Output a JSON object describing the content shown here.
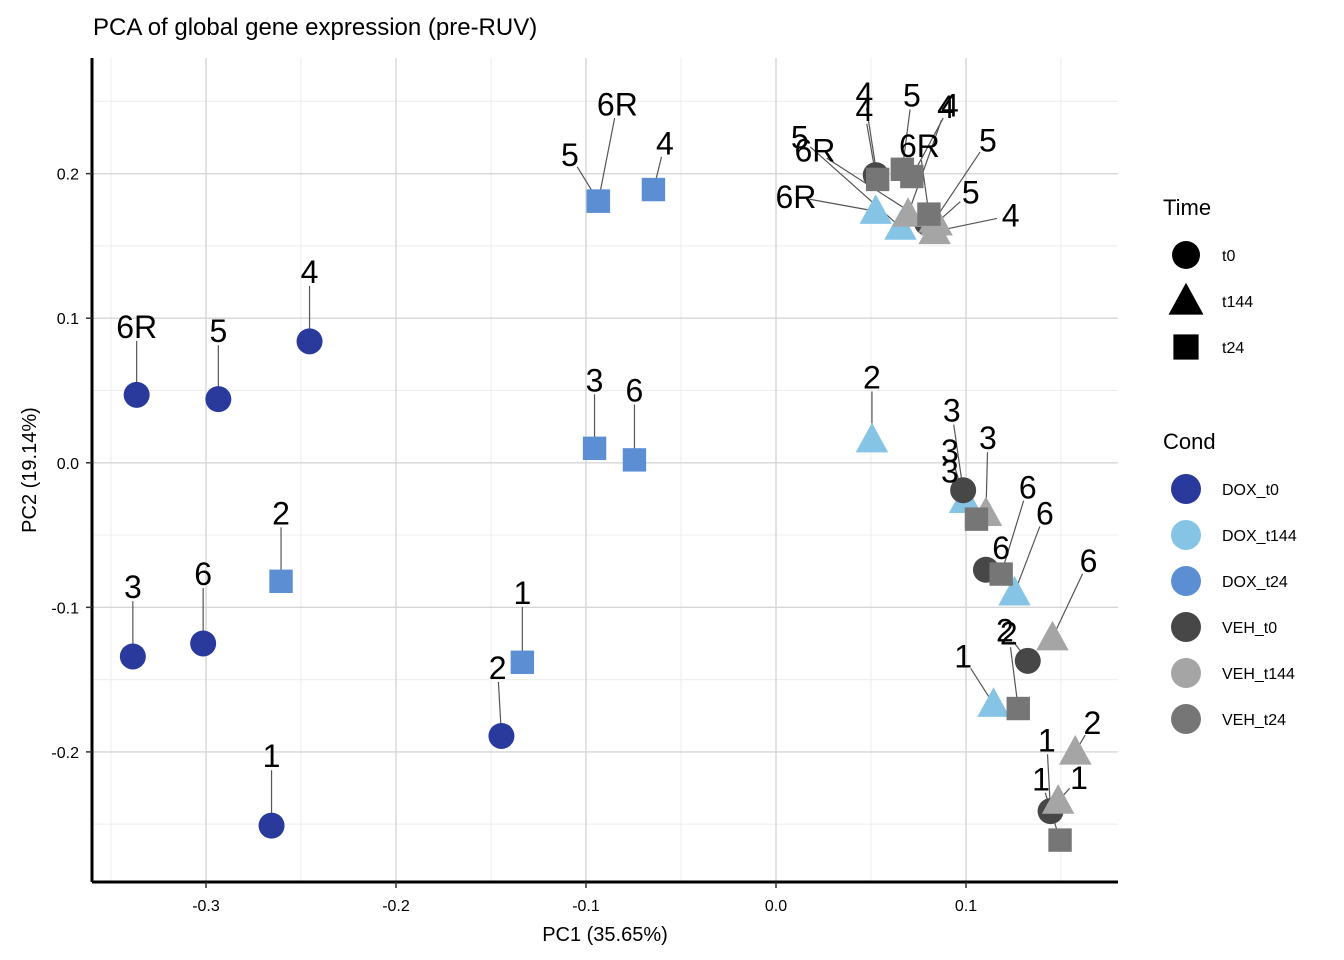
{
  "chart_data": {
    "type": "scatter",
    "title": "PCA of global gene expression (pre-RUV)",
    "xlabel": "PC1 (35.65%)",
    "ylabel": "PC2 (19.14%)",
    "xlim": [
      -0.36,
      0.18
    ],
    "ylim": [
      -0.29,
      0.28
    ],
    "x_ticks": [
      -0.3,
      -0.2,
      -0.1,
      0.0,
      0.1
    ],
    "x_tick_labels": [
      "-0.3",
      "-0.2",
      "-0.1",
      "0.0",
      "0.1"
    ],
    "y_ticks": [
      -0.2,
      -0.1,
      0.0,
      0.1,
      0.2
    ],
    "y_tick_labels": [
      "-0.2",
      "-0.1",
      "0.0",
      "0.1",
      "0.2"
    ],
    "grid": true,
    "legend_position": "right",
    "time_legend": {
      "title": "Time",
      "entries": [
        {
          "label": "t0",
          "shape": "circle"
        },
        {
          "label": "t144",
          "shape": "triangle"
        },
        {
          "label": "t24",
          "shape": "square"
        }
      ]
    },
    "cond_legend": {
      "title": "Cond",
      "entries": [
        {
          "label": "DOX_t0",
          "color": "#2a3a9c"
        },
        {
          "label": "DOX_t144",
          "color": "#86c4e6"
        },
        {
          "label": "DOX_t24",
          "color": "#5b8ed3"
        },
        {
          "label": "VEH_t0",
          "color": "#474747"
        },
        {
          "label": "VEH_t144",
          "color": "#a5a5a5"
        },
        {
          "label": "VEH_t24",
          "color": "#767676"
        }
      ]
    },
    "points": [
      {
        "label": "6R",
        "cond": "DOX_t0",
        "x": -0.3365,
        "y": 0.047,
        "lx": -0.3365,
        "ly": 0.094
      },
      {
        "label": "5",
        "cond": "DOX_t0",
        "x": -0.2935,
        "y": 0.044,
        "lx": -0.2935,
        "ly": 0.091
      },
      {
        "label": "4",
        "cond": "DOX_t0",
        "x": -0.2455,
        "y": 0.084,
        "lx": -0.2455,
        "ly": 0.132
      },
      {
        "label": "3",
        "cond": "DOX_t0",
        "x": -0.3385,
        "y": -0.134,
        "lx": -0.3385,
        "ly": -0.086
      },
      {
        "label": "6",
        "cond": "DOX_t0",
        "x": -0.3015,
        "y": -0.125,
        "lx": -0.3015,
        "ly": -0.077
      },
      {
        "label": "1",
        "cond": "DOX_t0",
        "x": -0.2655,
        "y": -0.251,
        "lx": -0.2655,
        "ly": -0.203
      },
      {
        "label": "2",
        "cond": "DOX_t0",
        "x": -0.1445,
        "y": -0.189,
        "lx": -0.1465,
        "ly": -0.142
      },
      {
        "label": "2",
        "cond": "DOX_t24",
        "x": -0.2605,
        "y": -0.082,
        "lx": -0.2605,
        "ly": -0.035
      },
      {
        "label": "1",
        "cond": "DOX_t24",
        "x": -0.1335,
        "y": -0.138,
        "lx": -0.1335,
        "ly": -0.09
      },
      {
        "label": "3",
        "cond": "DOX_t24",
        "x": -0.0955,
        "y": 0.01,
        "lx": -0.0955,
        "ly": 0.057
      },
      {
        "label": "6",
        "cond": "DOX_t24",
        "x": -0.0745,
        "y": 0.002,
        "lx": -0.0745,
        "ly": 0.05
      },
      {
        "label": "5",
        "cond": "DOX_t24",
        "x": -0.0935,
        "y": 0.181,
        "lx": -0.1085,
        "ly": 0.213
      },
      {
        "label": "6R",
        "cond": "DOX_t24",
        "x": -0.0935,
        "y": 0.181,
        "lx": -0.0835,
        "ly": 0.248
      },
      {
        "label": "4",
        "cond": "DOX_t24",
        "x": -0.0645,
        "y": 0.189,
        "lx": -0.0585,
        "ly": 0.221
      },
      {
        "label": "2",
        "cond": "DOX_t144",
        "x": 0.0505,
        "y": 0.016,
        "lx": 0.0505,
        "ly": 0.059
      },
      {
        "label": "3",
        "cond": "DOX_t144",
        "x": 0.0995,
        "y": -0.026,
        "lx": 0.0915,
        "ly": 0.008
      },
      {
        "label": "6",
        "cond": "DOX_t144",
        "x": 0.1255,
        "y": -0.09,
        "lx": 0.1415,
        "ly": -0.035
      },
      {
        "label": "1",
        "cond": "DOX_t144",
        "x": 0.1145,
        "y": -0.167,
        "lx": 0.0985,
        "ly": -0.134
      },
      {
        "label": "6R",
        "cond": "DOX_t144",
        "x": 0.0525,
        "y": 0.174,
        "lx": 0.0105,
        "ly": 0.184
      },
      {
        "label": "5",
        "cond": "DOX_t144",
        "x": 0.0655,
        "y": 0.163,
        "lx": 0.0125,
        "ly": 0.225
      },
      {
        "label": "3",
        "cond": "VEH_t0",
        "x": 0.0985,
        "y": -0.019,
        "lx": 0.0925,
        "ly": 0.036
      },
      {
        "label": "6",
        "cond": "VEH_t0",
        "x": 0.1105,
        "y": -0.074,
        "lx": 0.1185,
        "ly": -0.059
      },
      {
        "label": "2",
        "cond": "VEH_t0",
        "x": 0.1325,
        "y": -0.137,
        "lx": 0.1205,
        "ly": -0.116
      },
      {
        "label": "1",
        "cond": "VEH_t0",
        "x": 0.1445,
        "y": -0.241,
        "lx": 0.1425,
        "ly": -0.192
      },
      {
        "label": "4",
        "cond": "VEH_t0",
        "x": 0.0525,
        "y": 0.199,
        "lx": 0.0465,
        "ly": 0.244
      },
      {
        "label": "6R",
        "cond": "VEH_t0",
        "x": 0.0795,
        "y": 0.166,
        "lx": 0.0205,
        "ly": 0.216
      },
      {
        "label": "3",
        "cond": "VEH_t144",
        "x": 0.1105,
        "y": -0.035,
        "lx": 0.1115,
        "ly": 0.017
      },
      {
        "label": "6",
        "cond": "VEH_t144",
        "x": 0.1455,
        "y": -0.121,
        "lx": 0.1645,
        "ly": -0.068
      },
      {
        "label": "2",
        "cond": "VEH_t144",
        "x": 0.1575,
        "y": -0.2,
        "lx": 0.1665,
        "ly": -0.18
      },
      {
        "label": "1",
        "cond": "VEH_t144",
        "x": 0.1485,
        "y": -0.234,
        "lx": 0.1595,
        "ly": -0.218
      },
      {
        "label": "4",
        "cond": "VEH_t144",
        "x": 0.0695,
        "y": 0.172,
        "lx": 0.0895,
        "ly": 0.246
      },
      {
        "label": "5",
        "cond": "VEH_t144",
        "x": 0.0835,
        "y": 0.168,
        "lx": 0.1115,
        "ly": 0.223
      },
      {
        "label": "4",
        "cond": "VEH_t144",
        "x": 0.0835,
        "y": 0.16,
        "lx": 0.1235,
        "ly": 0.171
      },
      {
        "label": "5",
        "cond": "VEH_t144",
        "x": 0.0845,
        "y": 0.166,
        "lx": 0.1025,
        "ly": 0.187
      },
      {
        "label": "2",
        "cond": "VEH_t24",
        "x": 0.1275,
        "y": -0.17,
        "lx": 0.1225,
        "ly": -0.118
      },
      {
        "label": "1",
        "cond": "VEH_t24",
        "x": 0.1495,
        "y": -0.261,
        "lx": 0.1395,
        "ly": -0.219
      },
      {
        "label": "3",
        "cond": "VEH_t24",
        "x": 0.1055,
        "y": -0.039,
        "lx": 0.0915,
        "ly": -0.006
      },
      {
        "label": "6",
        "cond": "VEH_t24",
        "x": 0.1185,
        "y": -0.077,
        "lx": 0.1325,
        "ly": -0.017
      },
      {
        "label": "4",
        "cond": "VEH_t24",
        "x": 0.0715,
        "y": 0.198,
        "lx": 0.0915,
        "ly": 0.247
      },
      {
        "label": "5",
        "cond": "VEH_t24",
        "x": 0.0665,
        "y": 0.203,
        "lx": 0.0715,
        "ly": 0.254
      },
      {
        "label": "6R",
        "cond": "VEH_t24",
        "x": 0.0805,
        "y": 0.172,
        "lx": 0.0755,
        "ly": 0.219
      },
      {
        "label": "4",
        "cond": "VEH_t24",
        "x": 0.0535,
        "y": 0.196,
        "lx": 0.0465,
        "ly": 0.255
      }
    ]
  }
}
